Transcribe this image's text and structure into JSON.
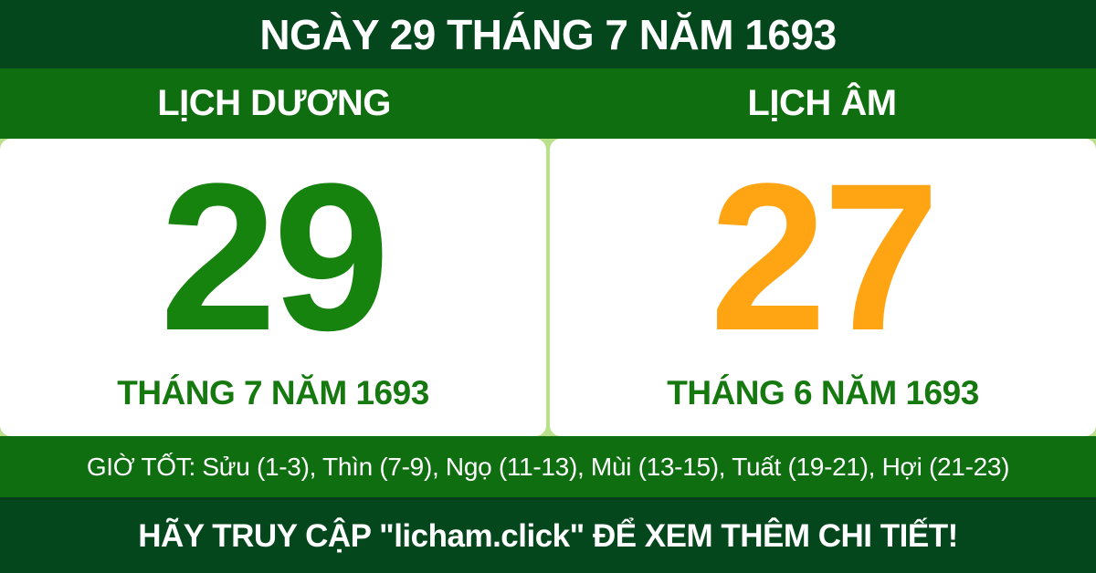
{
  "theme": {
    "dark_green": "#05471d",
    "green": "#0f6e10",
    "digit_green": "#17830f",
    "month_green": "#15790f",
    "digit_orange": "#ffa413",
    "divider_green": "#b9e08a",
    "white": "#ffffff"
  },
  "header": {
    "title": "NGÀY 29 THÁNG 7 NĂM 1693"
  },
  "calendars": {
    "solar": {
      "label": "LỊCH DƯƠNG",
      "day": "29",
      "month_year": "THÁNG 7 NĂM 1693"
    },
    "lunar": {
      "label": "LỊCH ÂM",
      "day": "27",
      "month_year": "THÁNG 6 NĂM 1693"
    }
  },
  "good_hours": {
    "text": "GIỜ TỐT: Sửu (1-3), Thìn (7-9), Ngọ (11-13), Mùi (13-15), Tuất (19-21), Hợi (21-23)"
  },
  "footer": {
    "text": "HÃY TRUY CẬP \"licham.click\" ĐỂ XEM THÊM CHI TIẾT!"
  }
}
